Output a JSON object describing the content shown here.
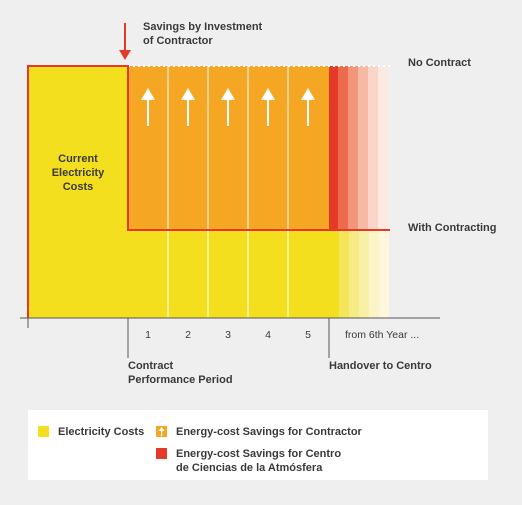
{
  "title": "Savings by Investment\nof Contractor",
  "labels": {
    "current_costs": "Current\nElectricity\nCosts",
    "no_contract": "No Contract",
    "with_contracting": "With Contracting",
    "contract_period": "Contract\nPerformance Period",
    "handover": "Handover to Centro"
  },
  "x_ticks": [
    "1",
    "2",
    "3",
    "4",
    "5",
    "from 6th Year ..."
  ],
  "legend": [
    {
      "label": "Electricity Costs",
      "color": "#f3df1e"
    },
    {
      "label": "Energy-cost Savings for Contractor",
      "color": "#f5a623",
      "icon": "up-arrow-icon"
    },
    {
      "label": "Energy-cost Savings for Centro\nde Ciencias de la Atmósfera",
      "color": "#e53a2a"
    }
  ],
  "colors": {
    "yellow": "#f3df1e",
    "orange": "#f5a623",
    "red": "#e53a2a",
    "axis": "#555555"
  }
}
